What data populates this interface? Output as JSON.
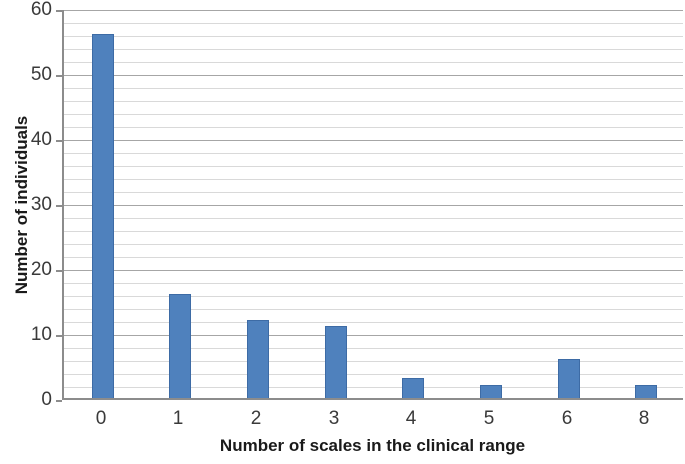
{
  "chart_data": {
    "type": "bar",
    "title": "",
    "xlabel": "Number of scales in the clinical range",
    "ylabel": "Number of individuals",
    "categories": [
      "0",
      "1",
      "2",
      "3",
      "4",
      "5",
      "6",
      "8"
    ],
    "values": [
      56,
      16,
      12,
      11,
      3,
      2,
      6,
      2
    ],
    "ylim": [
      0,
      60
    ],
    "y_major_ticks": [
      0,
      10,
      20,
      30,
      40,
      50,
      60
    ],
    "y_minor_step": 2,
    "grid": "horizontal, minor every 2, major every 10",
    "legend_position": "none",
    "colors": {
      "bar_fill": "#4f81bd",
      "bar_border": "#3d6ba5",
      "minor_grid": "#d9d9d9",
      "major_grid": "#a6a6a6",
      "axis_line": "#8c8c8c",
      "tick_label": "#3a3a3a",
      "axis_title": "#1a1a1a",
      "background": "#ffffff"
    }
  }
}
